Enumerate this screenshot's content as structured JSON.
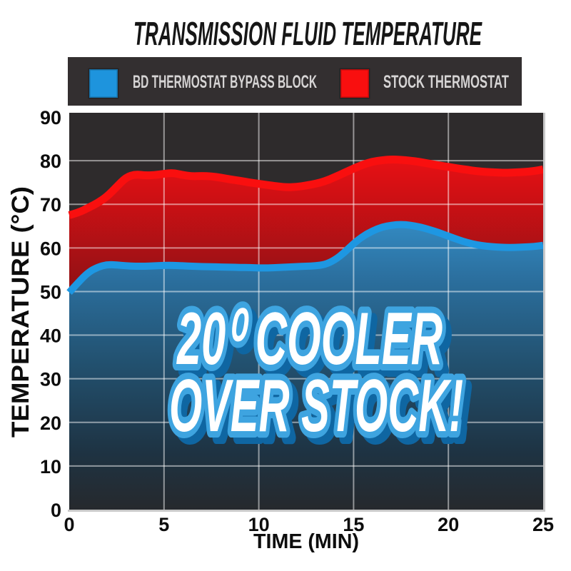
{
  "title": "TRANSMISSION FLUID TEMPERATURE",
  "legend": {
    "items": [
      {
        "label": "BD THERMOSTAT BYPASS BLOCK",
        "color": "#1e94dd"
      },
      {
        "label": "STOCK THERMOSTAT",
        "color": "#f90f0f"
      }
    ]
  },
  "annotation": {
    "line1": "20⁰ COOLER",
    "line2": "OVER STOCK!"
  },
  "colors": {
    "plot_background": "#2e2b2c",
    "legend_background": "#332f30",
    "bd_line": "#1e97e2",
    "stock_line": "#f90f0f",
    "gridline": "rgba(255,255,255,0.5)",
    "axis_text": "#0d0d0d",
    "border": "#c9c9c9",
    "annotation_fill": "#ffffff",
    "annotation_outline": "#3ea4e0",
    "annotation_shadow": "#0f66a2"
  },
  "chart_data": {
    "type": "area",
    "title": "TRANSMISSION FLUID TEMPERATURE",
    "xlabel": "TIME (MIN)",
    "ylabel": "TEMPERATURE (°C)",
    "xlim": [
      0,
      25
    ],
    "ylim": [
      0,
      90
    ],
    "x_ticks": [
      0,
      5,
      10,
      15,
      20,
      25
    ],
    "y_ticks": [
      0,
      10,
      20,
      30,
      40,
      50,
      60,
      70,
      80,
      90
    ],
    "grid": true,
    "legend_position": "top",
    "annotation": "20⁰ COOLER OVER STOCK!",
    "series": [
      {
        "name": "BD THERMOSTAT BYPASS BLOCK",
        "color": "#1e97e2",
        "points": [
          [
            0,
            49.8
          ],
          [
            0.5,
            52.2
          ],
          [
            1,
            54.4
          ],
          [
            1.5,
            55.6
          ],
          [
            2,
            56.2
          ],
          [
            2.5,
            56.1
          ],
          [
            3,
            55.9
          ],
          [
            3.5,
            55.8
          ],
          [
            4,
            55.8
          ],
          [
            4.5,
            55.9
          ],
          [
            5,
            56.0
          ],
          [
            5.5,
            56.0
          ],
          [
            6,
            55.9
          ],
          [
            6.5,
            55.8
          ],
          [
            7,
            55.7
          ],
          [
            7.5,
            55.7
          ],
          [
            8,
            55.6
          ],
          [
            8.5,
            55.6
          ],
          [
            9,
            55.5
          ],
          [
            9.5,
            55.5
          ],
          [
            10,
            55.4
          ],
          [
            10.5,
            55.4
          ],
          [
            11,
            55.5
          ],
          [
            11.5,
            55.6
          ],
          [
            12,
            55.7
          ],
          [
            12.5,
            55.8
          ],
          [
            13,
            55.9
          ],
          [
            13.5,
            56.2
          ],
          [
            14,
            57.2
          ],
          [
            14.5,
            58.9
          ],
          [
            15,
            61.0
          ],
          [
            15.5,
            62.7
          ],
          [
            16,
            63.9
          ],
          [
            16.5,
            64.8
          ],
          [
            17,
            65.2
          ],
          [
            17.5,
            65.4
          ],
          [
            18,
            65.2
          ],
          [
            18.5,
            64.8
          ],
          [
            19,
            64.2
          ],
          [
            19.5,
            63.5
          ],
          [
            20,
            62.7
          ],
          [
            20.5,
            61.9
          ],
          [
            21,
            61.2
          ],
          [
            21.5,
            60.7
          ],
          [
            22,
            60.4
          ],
          [
            22.5,
            60.2
          ],
          [
            23,
            60.1
          ],
          [
            23.5,
            60.1
          ],
          [
            24,
            60.2
          ],
          [
            24.5,
            60.3
          ],
          [
            25,
            60.6
          ]
        ]
      },
      {
        "name": "STOCK THERMOSTAT",
        "color": "#f90f0f",
        "points": [
          [
            0,
            67.5
          ],
          [
            0.5,
            68.1
          ],
          [
            1,
            69.2
          ],
          [
            1.5,
            70.3
          ],
          [
            2,
            71.8
          ],
          [
            2.5,
            74.0
          ],
          [
            3,
            76.2
          ],
          [
            3.5,
            76.9
          ],
          [
            4,
            76.6
          ],
          [
            4.5,
            76.7
          ],
          [
            5,
            77.0
          ],
          [
            5.5,
            77.2
          ],
          [
            6,
            76.7
          ],
          [
            6.5,
            76.4
          ],
          [
            7,
            76.5
          ],
          [
            7.5,
            76.4
          ],
          [
            8,
            76.1
          ],
          [
            8.5,
            75.7
          ],
          [
            9,
            75.4
          ],
          [
            9.5,
            75.0
          ],
          [
            10,
            74.7
          ],
          [
            10.5,
            74.4
          ],
          [
            11,
            74.1
          ],
          [
            11.5,
            73.9
          ],
          [
            12,
            74.0
          ],
          [
            12.5,
            74.3
          ],
          [
            13,
            74.7
          ],
          [
            13.5,
            75.3
          ],
          [
            14,
            76.2
          ],
          [
            14.5,
            77.2
          ],
          [
            15,
            78.2
          ],
          [
            15.5,
            79.1
          ],
          [
            16,
            79.8
          ],
          [
            16.5,
            80.1
          ],
          [
            17,
            80.3
          ],
          [
            17.5,
            80.2
          ],
          [
            18,
            80.0
          ],
          [
            18.5,
            79.7
          ],
          [
            19,
            79.3
          ],
          [
            19.5,
            78.9
          ],
          [
            20,
            78.6
          ],
          [
            20.5,
            78.2
          ],
          [
            21,
            77.9
          ],
          [
            21.5,
            77.6
          ],
          [
            22,
            77.4
          ],
          [
            22.5,
            77.3
          ],
          [
            23,
            77.2
          ],
          [
            23.5,
            77.3
          ],
          [
            24,
            77.4
          ],
          [
            24.5,
            77.6
          ],
          [
            25,
            78.0
          ]
        ]
      }
    ]
  }
}
